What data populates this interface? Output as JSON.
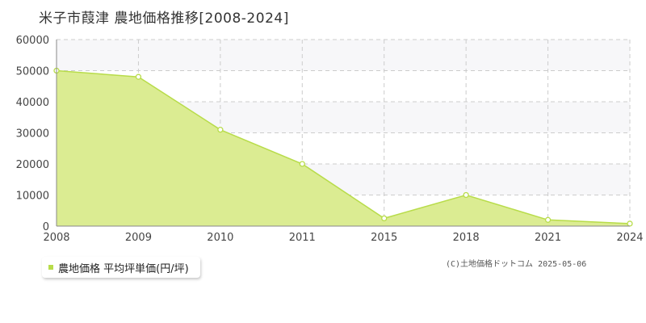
{
  "title": "米子市葭津 農地価格推移[2008-2024]",
  "legend_label": "農地価格 平均坪単価(円/坪)",
  "copyright": "(C)土地価格ドットコム 2025-05-06",
  "colors": {
    "area_fill": "#dbec92",
    "line": "#b8dc4a",
    "point_fill": "#ffffff",
    "grid": "#cccccc",
    "band": "#f7f7f9",
    "axis": "#888888"
  },
  "chart_data": {
    "type": "area",
    "categories": [
      "2008",
      "2009",
      "2010",
      "2011",
      "2015",
      "2018",
      "2021",
      "2024"
    ],
    "series": [
      {
        "name": "農地価格 平均坪単価(円/坪)",
        "values": [
          50000,
          48000,
          31000,
          20000,
          2500,
          10000,
          2000,
          800
        ]
      }
    ],
    "y_ticks": [
      "0",
      "10000",
      "20000",
      "30000",
      "40000",
      "50000",
      "60000"
    ],
    "ylim": [
      0,
      60000
    ],
    "grid": true,
    "legend_position": "bottom-left"
  }
}
